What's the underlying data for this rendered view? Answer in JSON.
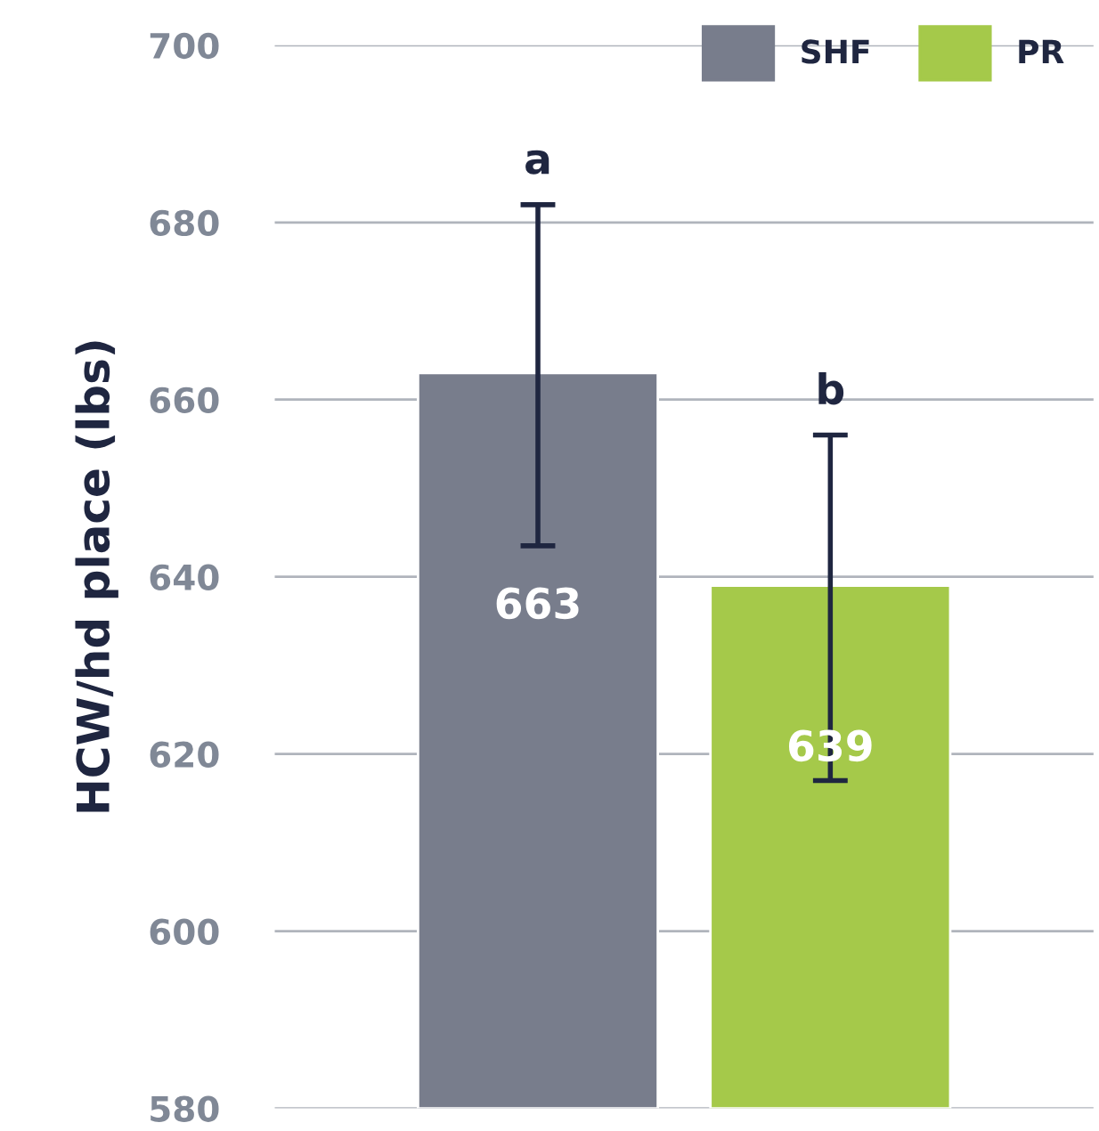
{
  "chart_data": {
    "type": "bar",
    "ylabel": "HCW/hd place (lbs)",
    "categories": [
      null,
      null
    ],
    "series": [
      {
        "name": "SHF",
        "color": "#787d8c",
        "values": [
          663,
          null
        ],
        "errors": [
          [
            643.5,
            682
          ],
          null
        ]
      },
      {
        "name": "PR",
        "color": "#a5c94a",
        "values": [
          null,
          639
        ],
        "errors": [
          null,
          [
            617,
            656
          ]
        ]
      }
    ],
    "data_labels": true,
    "ylim": [
      580,
      700
    ],
    "yticks": [
      580,
      600,
      620,
      640,
      660,
      680,
      700
    ],
    "grid": "y",
    "legend": "top right",
    "annotations": [
      {
        "text": "a",
        "y": 682
      },
      {
        "text": "b",
        "y": 656
      }
    ]
  }
}
